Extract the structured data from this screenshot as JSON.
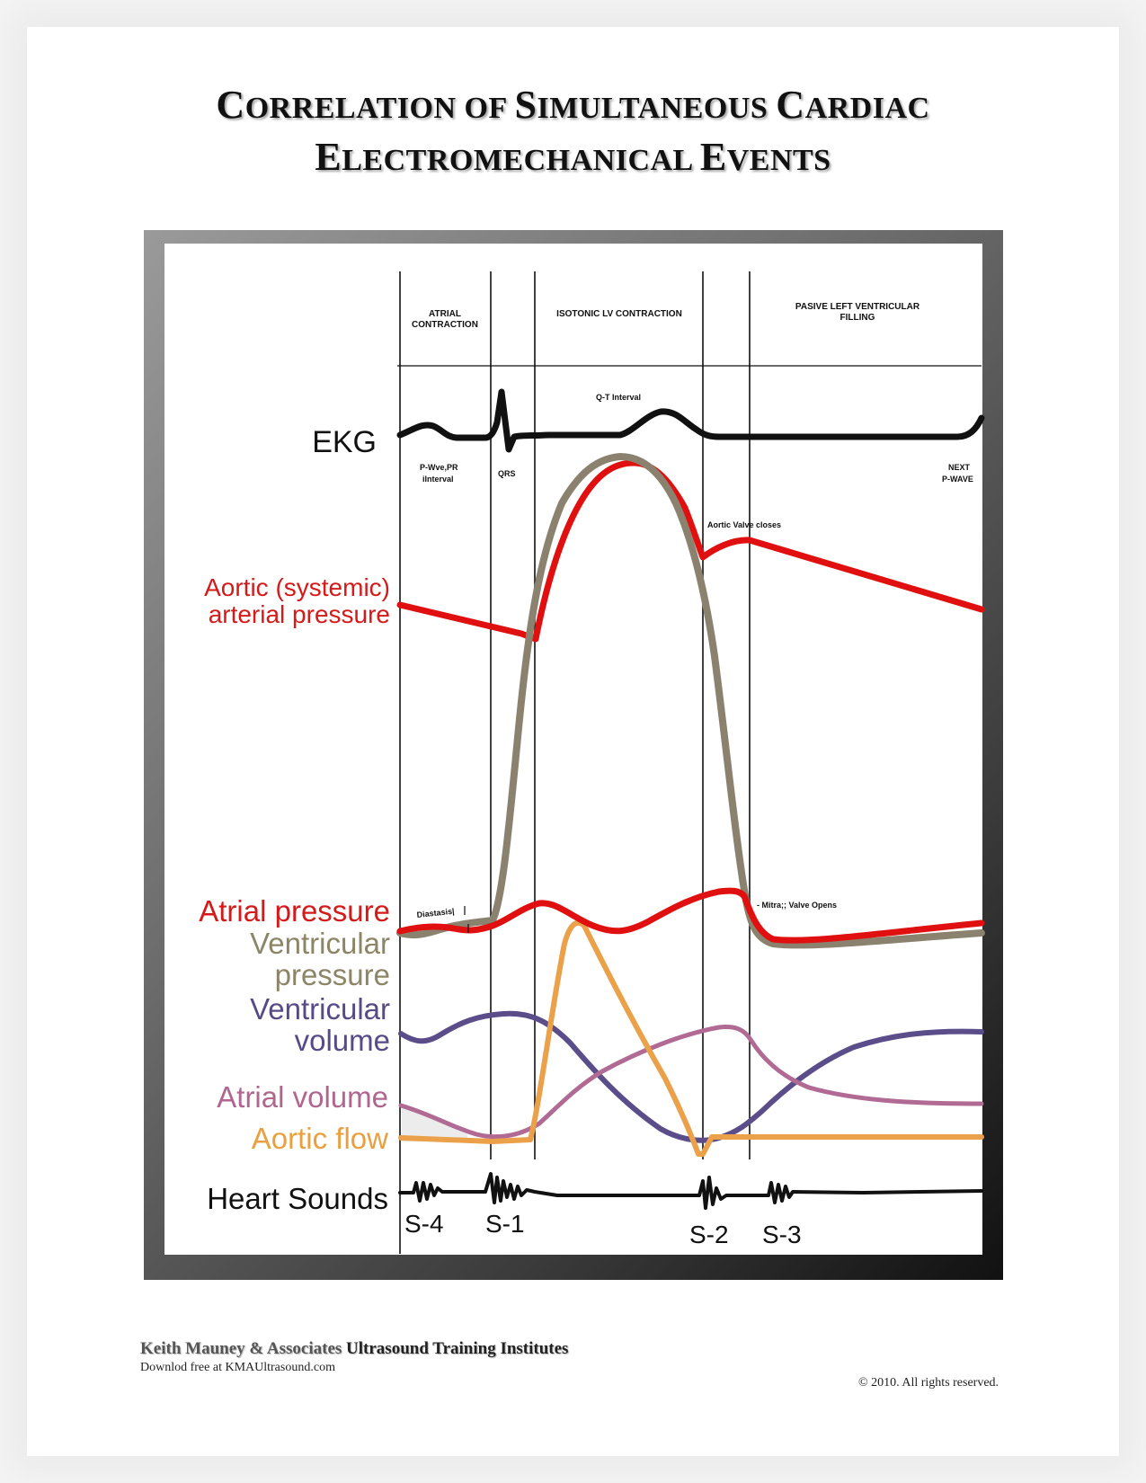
{
  "title": {
    "line1": [
      "C",
      "ORRELATION OF ",
      "S",
      "IMULTANEOUS ",
      "C",
      "ARDIAC"
    ],
    "line2": [
      "E",
      "LECTROMECHANICAL ",
      "E",
      "VENTS"
    ]
  },
  "phases": {
    "atrial": "ATRIAL CONTRACTION",
    "isotonic": "ISOTONIC LV CONTRACTION",
    "passive": "PASIVE LEFT VENTRICULAR FILLING"
  },
  "annotations": {
    "qt": "Q-T Interval",
    "pwave": "P-Wve,PR",
    "pwave2": "iInterval",
    "qrs": "QRS",
    "next_p": "NEXT",
    "next_p2": "P-WAVE",
    "aortic_valve": "Aortic Valve closes",
    "mitral": "- Mitra;; Valve Opens",
    "diastasis": "Diastasis|"
  },
  "row_labels": {
    "ekg": "EKG",
    "aortic1": "Aortic (systemic)",
    "aortic2": "arterial pressure",
    "atrial_pressure": "Atrial pressure",
    "ventricular_pressure1": "Ventricular",
    "ventricular_pressure2": "pressure",
    "ventricular_volume1": "Ventricular",
    "ventricular_volume2": "volume",
    "atrial_volume": "Atrial volume",
    "aortic_flow": "Aortic flow",
    "heart_sounds": "Heart Sounds"
  },
  "sounds": {
    "s4": "S-4",
    "s1": "S-1",
    "s2": "S-2",
    "s3": "S-3"
  },
  "colors": {
    "red": "#e01010",
    "taupe": "#8a826e",
    "purple": "#5b4c8a",
    "pink": "#b06a94",
    "orange": "#eba04a",
    "black": "#111111",
    "label_red": "#d41a1a",
    "label_taupe": "#8c8566",
    "label_purple": "#574a87",
    "label_pink": "#b0668e",
    "label_orange": "#e8a040"
  },
  "footer": {
    "brand_gray": "Keith Mauney & Associates",
    "brand_dark": "Ultrasound Training Institutes",
    "download": "Downlod free at KMAUltrasound.com",
    "copyright": "© 2010. All rights reserved."
  }
}
